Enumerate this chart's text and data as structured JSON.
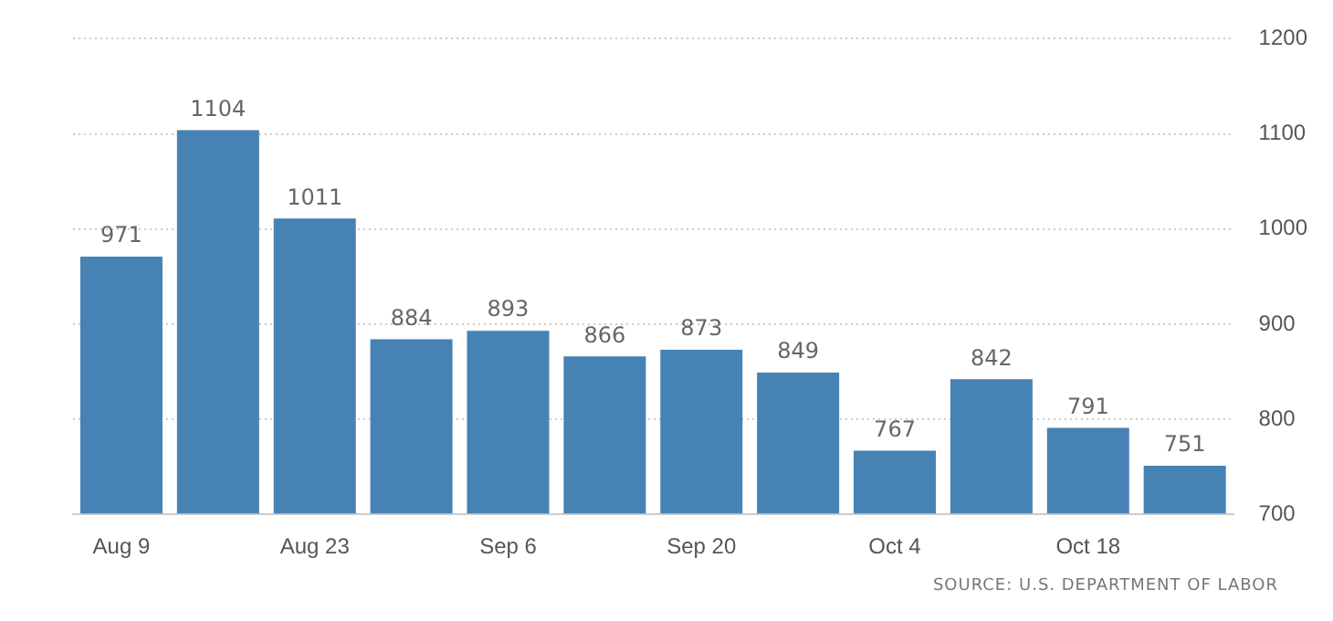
{
  "chart_data": {
    "type": "bar",
    "categories": [
      "Aug 9",
      null,
      "Aug 23",
      null,
      "Sep 6",
      null,
      "Sep 20",
      null,
      "Oct 4",
      null,
      "Oct 18",
      null
    ],
    "values": [
      971,
      1104,
      1011,
      884,
      893,
      866,
      873,
      849,
      767,
      842,
      791,
      751
    ],
    "color": "#4682b4",
    "ylim": [
      700,
      1200
    ],
    "yticks": [
      700,
      800,
      900,
      1000,
      1100,
      1200
    ],
    "grid": "y",
    "data_labels": true,
    "legend": false,
    "annotations": [
      "SOURCE: U.S. DEPARTMENT OF LABOR"
    ]
  }
}
